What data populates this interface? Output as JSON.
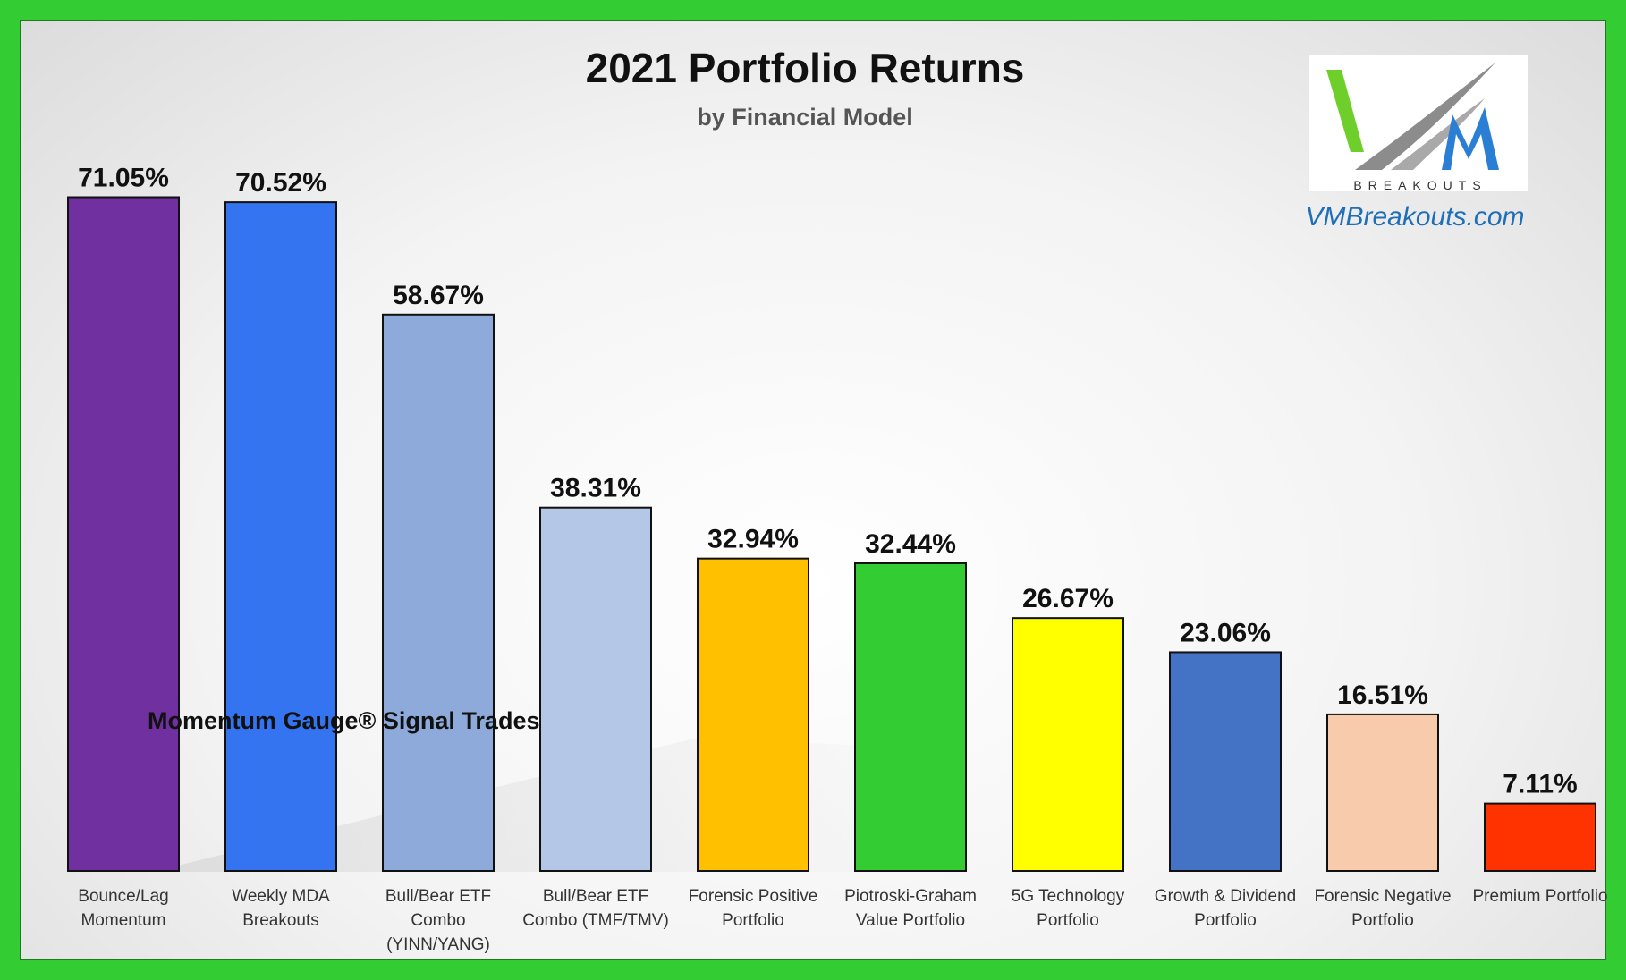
{
  "chart_data": {
    "type": "bar",
    "title": "2021 Portfolio Returns",
    "subtitle": "by Financial Model",
    "annotation": "Momentum Gauge® Signal Trades",
    "categories": [
      [
        "Bounce/Lag",
        "Momentum"
      ],
      [
        "Weekly MDA",
        "Breakouts"
      ],
      [
        "Bull/Bear ETF",
        "Combo",
        "(YINN/YANG)"
      ],
      [
        "Bull/Bear ETF",
        "Combo (TMF/TMV)"
      ],
      [
        "Forensic Positive",
        "Portfolio"
      ],
      [
        "Piotroski-Graham",
        "Value Portfolio"
      ],
      [
        "5G Technology",
        "Portfolio"
      ],
      [
        "Growth & Dividend",
        "Portfolio"
      ],
      [
        "Forensic Negative",
        "Portfolio"
      ],
      [
        "Premium Portfolio"
      ]
    ],
    "values": [
      71.05,
      70.52,
      58.67,
      38.31,
      32.94,
      32.44,
      26.67,
      23.06,
      16.51,
      7.11
    ],
    "value_labels": [
      "71.05%",
      "70.52%",
      "58.67%",
      "38.31%",
      "32.94%",
      "32.44%",
      "26.67%",
      "23.06%",
      "16.51%",
      "7.11%"
    ],
    "colors": [
      "#7030a0",
      "#3574f0",
      "#8eaadb",
      "#b4c7e7",
      "#ffc000",
      "#33cc33",
      "#ffff00",
      "#4472c4",
      "#f8cbad",
      "#ff3300"
    ],
    "ylim": [
      0,
      76
    ],
    "grid": false,
    "legend": "none"
  },
  "logo": {
    "word": "BREAKOUTS",
    "website": "VMBreakouts.com",
    "colors": {
      "green": "#6fcf2a",
      "gray": "#8c8c8c",
      "blue": "#2a7fd4"
    }
  }
}
